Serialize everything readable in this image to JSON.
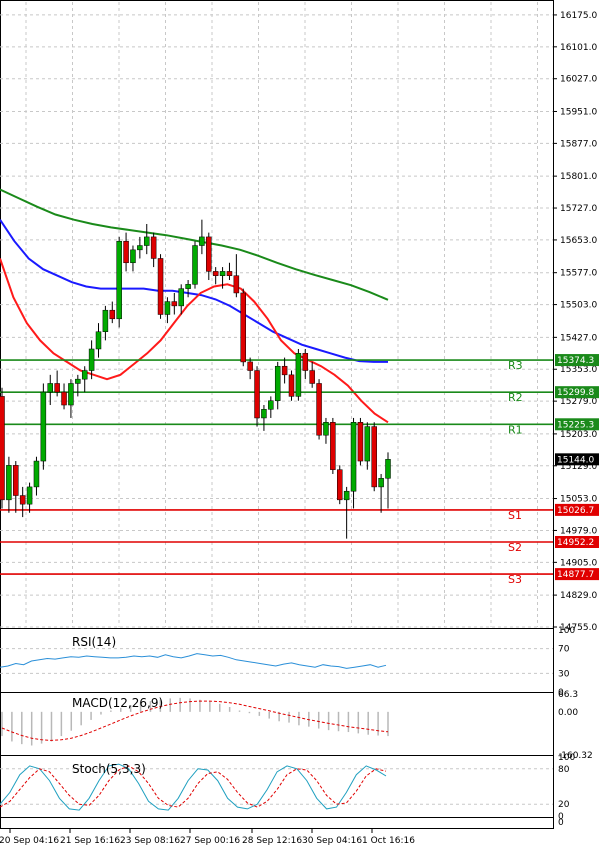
{
  "chart_data": {
    "type": "candlestick",
    "price_ticks": [
      16175.0,
      16101.0,
      16027.0,
      15951.0,
      15877.0,
      15801.0,
      15727.0,
      15653.0,
      15577.0,
      15503.0,
      15427.0,
      15353.0,
      15279.0,
      15203.0,
      15129.0,
      15053.0,
      14979.0,
      14905.0,
      14829.0,
      14755.0
    ],
    "price_range": [
      14755.0,
      16205.0
    ],
    "current_price": "15144.0",
    "levels": [
      {
        "name": "R3",
        "value": 15374.3,
        "label": "15374.3",
        "color": "#1a8a1a"
      },
      {
        "name": "R2",
        "value": 15299.8,
        "label": "15299.8",
        "color": "#1a8a1a"
      },
      {
        "name": "R1",
        "value": 15225.3,
        "label": "15225.3",
        "color": "#1a8a1a"
      },
      {
        "name": "S1",
        "value": 15026.7,
        "label": "15026.7",
        "color": "#e00000"
      },
      {
        "name": "S2",
        "value": 14952.2,
        "label": "14952.2",
        "color": "#e00000"
      },
      {
        "name": "S3",
        "value": 14877.7,
        "label": "14877.7",
        "color": "#e00000"
      }
    ],
    "x_labels": [
      "20 Sep 04:16",
      "21 Sep 16:16",
      "23 Sep 08:16",
      "27 Sep 00:16",
      "28 Sep 12:16",
      "30 Sep 04:16",
      "1 Oct 16:16"
    ],
    "candles": [
      [
        15290,
        15310,
        15030,
        15050
      ],
      [
        15050,
        15150,
        15020,
        15130
      ],
      [
        15130,
        15140,
        15020,
        15060
      ],
      [
        15060,
        15080,
        15010,
        15040
      ],
      [
        15040,
        15090,
        15020,
        15080
      ],
      [
        15080,
        15150,
        15060,
        15140
      ],
      [
        15140,
        15320,
        15120,
        15300
      ],
      [
        15300,
        15340,
        15270,
        15320
      ],
      [
        15320,
        15350,
        15290,
        15300
      ],
      [
        15300,
        15320,
        15260,
        15270
      ],
      [
        15270,
        15330,
        15240,
        15320
      ],
      [
        15320,
        15340,
        15290,
        15330
      ],
      [
        15330,
        15360,
        15300,
        15350
      ],
      [
        15350,
        15420,
        15330,
        15400
      ],
      [
        15400,
        15460,
        15380,
        15440
      ],
      [
        15440,
        15500,
        15420,
        15490
      ],
      [
        15490,
        15510,
        15460,
        15470
      ],
      [
        15470,
        15660,
        15450,
        15650
      ],
      [
        15650,
        15670,
        15580,
        15600
      ],
      [
        15600,
        15640,
        15580,
        15630
      ],
      [
        15630,
        15660,
        15610,
        15640
      ],
      [
        15640,
        15690,
        15620,
        15660
      ],
      [
        15660,
        15670,
        15590,
        15610
      ],
      [
        15610,
        15620,
        15470,
        15480
      ],
      [
        15480,
        15520,
        15460,
        15510
      ],
      [
        15510,
        15530,
        15480,
        15500
      ],
      [
        15500,
        15550,
        15480,
        15540
      ],
      [
        15540,
        15560,
        15520,
        15550
      ],
      [
        15550,
        15650,
        15540,
        15640
      ],
      [
        15640,
        15700,
        15620,
        15660
      ],
      [
        15660,
        15670,
        15560,
        15580
      ],
      [
        15580,
        15590,
        15550,
        15570
      ],
      [
        15570,
        15590,
        15540,
        15580
      ],
      [
        15580,
        15600,
        15560,
        15570
      ],
      [
        15570,
        15620,
        15520,
        15530
      ],
      [
        15530,
        15540,
        15360,
        15370
      ],
      [
        15370,
        15380,
        15330,
        15350
      ],
      [
        15350,
        15360,
        15220,
        15240
      ],
      [
        15240,
        15270,
        15210,
        15260
      ],
      [
        15260,
        15290,
        15240,
        15280
      ],
      [
        15280,
        15370,
        15260,
        15360
      ],
      [
        15360,
        15380,
        15320,
        15340
      ],
      [
        15340,
        15350,
        15280,
        15290
      ],
      [
        15290,
        15400,
        15280,
        15390
      ],
      [
        15390,
        15400,
        15330,
        15350
      ],
      [
        15350,
        15370,
        15310,
        15320
      ],
      [
        15320,
        15330,
        15190,
        15200
      ],
      [
        15200,
        15240,
        15180,
        15230
      ],
      [
        15230,
        15240,
        15110,
        15120
      ],
      [
        15120,
        15130,
        15040,
        15050
      ],
      [
        15050,
        15080,
        14960,
        15070
      ],
      [
        15070,
        15240,
        15030,
        15230
      ],
      [
        15230,
        15240,
        15130,
        15140
      ],
      [
        15140,
        15230,
        15120,
        15220
      ],
      [
        15220,
        15230,
        15070,
        15080
      ],
      [
        15080,
        15110,
        15020,
        15100
      ],
      [
        15100,
        15160,
        15030,
        15144
      ]
    ],
    "ma_red": [
      15610,
      15520,
      15460,
      15420,
      15390,
      15370,
      15350,
      15340,
      15330,
      15340,
      15365,
      15390,
      15420,
      15460,
      15500,
      15530,
      15545,
      15550,
      15540,
      15510,
      15470,
      15420,
      15390,
      15375,
      15360,
      15340,
      15315,
      15280,
      15250,
      15230
    ],
    "ma_blue": [
      15700,
      15650,
      15610,
      15585,
      15570,
      15555,
      15545,
      15540,
      15540,
      15540,
      15540,
      15535,
      15535,
      15530,
      15525,
      15515,
      15500,
      15480,
      15460,
      15440,
      15425,
      15410,
      15400,
      15390,
      15380,
      15372,
      15370,
      15370
    ],
    "ma_green": [
      15770,
      15750,
      15730,
      15712,
      15700,
      15690,
      15682,
      15676,
      15670,
      15664,
      15656,
      15648,
      15640,
      15630,
      15616,
      15600,
      15585,
      15572,
      15560,
      15548,
      15532,
      15514
    ],
    "rsi": {
      "label": "RSI(14)",
      "ticks": [
        100,
        70,
        30,
        0
      ],
      "values": [
        40,
        42,
        46,
        44,
        50,
        52,
        54,
        53,
        55,
        57,
        56,
        58,
        57,
        56,
        55,
        55,
        56,
        58,
        57,
        58,
        56,
        60,
        57,
        55,
        58,
        62,
        60,
        58,
        59,
        56,
        52,
        50,
        48,
        46,
        44,
        42,
        45,
        47,
        44,
        42,
        40,
        44,
        42,
        41,
        38,
        40,
        42,
        44,
        40,
        43
      ]
    },
    "macd": {
      "label": "MACD(12,26,9)",
      "ticks": [
        "66.3",
        "0.00",
        "-160.32"
      ],
      "range": [
        -160.32,
        66.3
      ],
      "hist": [
        -90,
        -110,
        -120,
        -125,
        -118,
        -110,
        -90,
        -70,
        -50,
        -30,
        -10,
        5,
        15,
        25,
        35,
        40,
        45,
        50,
        52,
        50,
        45,
        38,
        30,
        18,
        5,
        -5,
        -15,
        -25,
        -35,
        -40,
        -50,
        -55,
        -62,
        -68,
        -72,
        -75,
        -80,
        -85,
        -88,
        -90
      ],
      "signal": [
        -60,
        -75,
        -88,
        -98,
        -104,
        -106,
        -104,
        -98,
        -88,
        -75,
        -60,
        -45,
        -30,
        -15,
        -2,
        10,
        20,
        28,
        34,
        38,
        40,
        40,
        38,
        34,
        28,
        20,
        12,
        4,
        -5,
        -13,
        -21,
        -29,
        -36,
        -43,
        -49,
        -55,
        -60,
        -65,
        -70,
        -74
      ]
    },
    "stoch": {
      "label": "Stoch(5,3,3)",
      "ticks": [
        100,
        80,
        20,
        0
      ],
      "k": [
        20,
        40,
        70,
        85,
        80,
        60,
        30,
        12,
        10,
        30,
        60,
        85,
        88,
        80,
        55,
        25,
        12,
        10,
        30,
        60,
        80,
        78,
        60,
        30,
        15,
        12,
        20,
        45,
        75,
        85,
        80,
        60,
        30,
        12,
        15,
        40,
        70,
        85,
        78,
        68
      ],
      "d": [
        15,
        25,
        45,
        65,
        80,
        75,
        55,
        35,
        20,
        18,
        35,
        60,
        78,
        85,
        75,
        55,
        30,
        18,
        15,
        30,
        55,
        72,
        75,
        62,
        40,
        22,
        15,
        25,
        45,
        70,
        80,
        78,
        60,
        35,
        20,
        22,
        42,
        68,
        80,
        76
      ]
    },
    "colors": {
      "up": "#00aa00",
      "down": "#dd0000",
      "ma_red": "#ff1a1a",
      "ma_blue": "#1a1aff",
      "ma_green": "#1a8a1a",
      "grid": "#c8c8c8",
      "rsi_line": "#2a8fd8",
      "macd_hist": "#b8b8b8",
      "macd_signal": "#e00000",
      "stoch_k": "#20a0c0",
      "stoch_d": "#e00000"
    }
  }
}
